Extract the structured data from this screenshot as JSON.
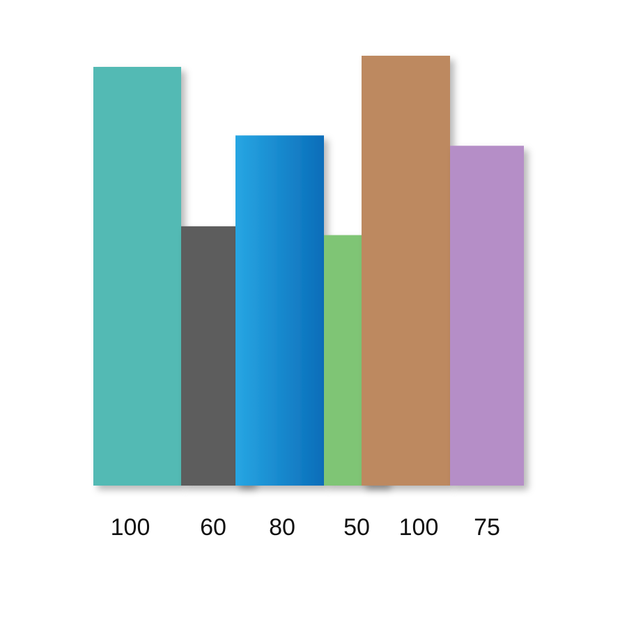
{
  "chart_data": {
    "type": "bar",
    "categories": [
      "100",
      "60",
      "80",
      "50",
      "100",
      "75"
    ],
    "values": [
      100,
      60,
      80,
      50,
      100,
      75
    ],
    "colors": [
      "#52bab4",
      "#5d5d5d",
      "#1e8fd2",
      "#7fc575",
      "#bd8960",
      "#b58ec7"
    ],
    "title": "",
    "xlabel": "",
    "ylabel": "",
    "ylim": [
      0,
      100
    ],
    "grid": false,
    "legend": "none"
  }
}
